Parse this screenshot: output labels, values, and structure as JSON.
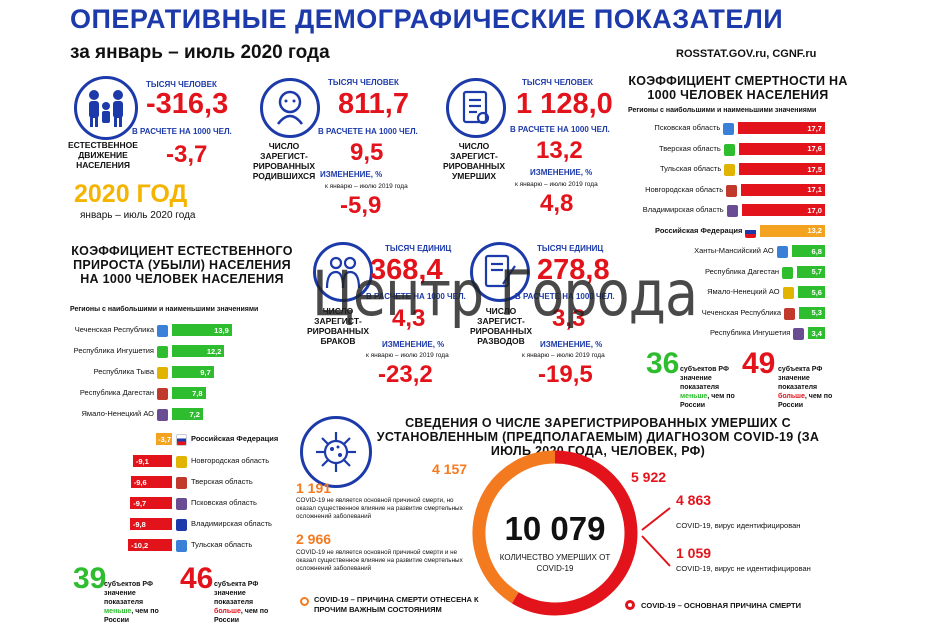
{
  "header": {
    "title": "ОПЕРАТИВНЫЕ ДЕМОГРАФИЧЕСКИЕ ПОКАЗАТЕЛИ",
    "subtitle": "за январь – июль 2020 года",
    "sources": "ROSSTAT.GOV.ru, CGNF.ru"
  },
  "natural": {
    "unit": "ТЫСЯЧ ЧЕЛОВЕК",
    "value": "-316,3",
    "per_label": "В РАСЧЕТЕ НА 1000 ЧЕЛ.",
    "per_value": "-3,7",
    "label": "ЕСТЕСТВЕННОЕ ДВИЖЕНИЕ НАСЕЛЕНИЯ",
    "year": "2020 ГОД",
    "period": "январь – июль 2020 года"
  },
  "births": {
    "unit": "ТЫСЯЧ ЧЕЛОВЕК",
    "value": "811,7",
    "per_label": "В РАСЧЕТЕ НА 1000 ЧЕЛ.",
    "per_value": "9,5",
    "label": "ЧИСЛО ЗАРЕГИСТ-РИРОВАННЫХ РОДИВШИХСЯ",
    "change_label": "ИЗМЕНЕНИЕ, %",
    "change_note": "к январю – июлю 2019 года",
    "change": "-5,9"
  },
  "deaths": {
    "unit": "ТЫСЯЧ ЧЕЛОВЕК",
    "value": "1 128,0",
    "per_label": "В РАСЧЕТЕ НА 1000 ЧЕЛ.",
    "per_value": "13,2",
    "label": "ЧИСЛО ЗАРЕГИСТ-РИРОВАННЫХ УМЕРШИХ",
    "change_label": "ИЗМЕНЕНИЕ, %",
    "change_note": "к январю – июлю 2019 года",
    "change": "4,8"
  },
  "marriages": {
    "unit": "ТЫСЯЧ ЕДИНИЦ",
    "value": "368,4",
    "per_label": "В РАСЧЕТЕ НА 1000 ЧЕЛ.",
    "per_value": "4,3",
    "label": "ЧИСЛО ЗАРЕГИСТ-РИРОВАННЫХ БРАКОВ",
    "change_label": "ИЗМЕНЕНИЕ, %",
    "change_note": "к январю – июлю 2019 года",
    "change": "-23,2"
  },
  "divorces": {
    "unit": "ТЫСЯЧ ЕДИНИЦ",
    "value": "278,8",
    "per_label": "В РАСЧЕТЕ НА 1000 ЧЕЛ.",
    "per_value": "3,3",
    "label": "ЧИСЛО ЗАРЕГИСТ-РИРОВАННЫХ РАЗВОДОВ",
    "change_label": "ИЗМЕНЕНИЕ, %",
    "change_note": "к январю – июлю 2019 года",
    "change": "-19,5"
  },
  "watermark": "Центр Города",
  "mortality": {
    "title": "КОЭФФИЦИЕНТ СМЕРТНОСТИ НА 1000 ЧЕЛОВЕК НАСЕЛЕНИЯ",
    "note": "Регионы с наибольшими и наименьшими значениями",
    "rows": [
      {
        "name": "Псковская область",
        "value": 17.7,
        "label": "17,7",
        "color": "#e3131b"
      },
      {
        "name": "Тверская область",
        "value": 17.6,
        "label": "17,6",
        "color": "#e3131b"
      },
      {
        "name": "Тульская область",
        "value": 17.5,
        "label": "17,5",
        "color": "#e3131b"
      },
      {
        "name": "Новгородская область",
        "value": 17.1,
        "label": "17,1",
        "color": "#e3131b"
      },
      {
        "name": "Владимирская область",
        "value": 17.0,
        "label": "17,0",
        "color": "#e3131b"
      },
      {
        "name": "Российская Федерация",
        "value": 13.2,
        "label": "13,2",
        "color": "#f4a321",
        "bold": true
      },
      {
        "name": "Ханты-Мансийский АО",
        "value": 6.8,
        "label": "6,8",
        "color": "#2ebd2e"
      },
      {
        "name": "Республика Дагестан",
        "value": 5.7,
        "label": "5,7",
        "color": "#2ebd2e"
      },
      {
        "name": "Ямало-Ненецкий АО",
        "value": 5.6,
        "label": "5,6",
        "color": "#2ebd2e"
      },
      {
        "name": "Чеченская Республика",
        "value": 5.3,
        "label": "5,3",
        "color": "#2ebd2e"
      },
      {
        "name": "Республика Ингушетия",
        "value": 3.4,
        "label": "3,4",
        "color": "#2ebd2e"
      }
    ],
    "less_count": "36",
    "less_text1": "субъектов РФ",
    "less_text2": "значение показателя",
    "less_word": "меньше",
    "less_text3": ", чем по России",
    "more_count": "49",
    "more_text1": "субъекта РФ",
    "more_text2": "значение показателя",
    "more_word": "больше",
    "more_text3": ", чем по России"
  },
  "growth": {
    "title": "КОЭФФИЦИЕНТ ЕСТЕСТВЕННОГО ПРИРОСТА (УБЫЛИ) НАСЕЛЕНИЯ НА 1000 ЧЕЛОВЕК НАСЕЛЕНИЯ",
    "note": "Регионы с наибольшими и наименьшими значениями",
    "positive": [
      {
        "name": "Чеченская Республика",
        "value": 13.9,
        "label": "13,9"
      },
      {
        "name": "Республика Ингушетия",
        "value": 12.2,
        "label": "12,2"
      },
      {
        "name": "Республика Тыва",
        "value": 9.7,
        "label": "9,7"
      },
      {
        "name": "Республика Дагестан",
        "value": 7.8,
        "label": "7,8"
      },
      {
        "name": "Ямало-Ненецкий АО",
        "value": 7.2,
        "label": "7,2"
      }
    ],
    "rf": {
      "name": "Российская Федерация",
      "value": -3.7,
      "label": "-3,7"
    },
    "negative": [
      {
        "name": "Новгородская область",
        "value": -9.1,
        "label": "-9,1"
      },
      {
        "name": "Тверская область",
        "value": -9.6,
        "label": "-9,6"
      },
      {
        "name": "Псковская область",
        "value": -9.7,
        "label": "-9,7"
      },
      {
        "name": "Владимирская область",
        "value": -9.8,
        "label": "-9,8"
      },
      {
        "name": "Тульская область",
        "value": -10.2,
        "label": "-10,2"
      }
    ],
    "more_count": "39",
    "more_text1": "субъектов РФ",
    "more_text2": "значение показателя",
    "more_word": "меньше",
    "more_text3": ", чем по России",
    "less_count": "46",
    "less_text1": "субъекта РФ",
    "less_text2": "значение показателя",
    "less_word": "больше",
    "less_text3": ", чем по России"
  },
  "covid": {
    "title": "СВЕДЕНИЯ О ЧИСЛЕ ЗАРЕГИСТРИРОВАННЫХ УМЕРШИХ С УСТАНОВЛЕННЫМ (ПРЕДПОЛАГАЕМЫМ) ДИАГНОЗОМ COVID-19 (ЗА ИЮЛЬ 2020 ГОДА, ЧЕЛОВЕК, РФ)",
    "total": "10 079",
    "total_label": "КОЛИЧЕСТВО УМЕРШИХ ОТ COVID-19",
    "other": "4 157",
    "main": "5 922",
    "a_value": "1 191",
    "a_text": "COVID-19 не является основной причиной смерти, но оказал существенное влияние на развитие смертельных осложнений заболеваний",
    "b_value": "2 966",
    "b_text": "COVID-19 не является основной причиной смерти и не оказал существенное влияние на развитие смертельных осложнений заболеваний",
    "c_value": "4 863",
    "c_text": "COVID-19, вирус идентифицирован",
    "d_value": "1 059",
    "d_text": "COVID-19, вирус не идентифицирован",
    "legend_other": "COVID-19 – ПРИЧИНА СМЕРТИ ОТНЕСЕНА К ПРОЧИМ ВАЖНЫМ СОСТОЯНИЯМ",
    "legend_main": "COVID-19 – ОСНОВНАЯ ПРИЧИНА СМЕРТИ",
    "colors": {
      "main": "#e3131b",
      "other": "#f47a20"
    }
  }
}
